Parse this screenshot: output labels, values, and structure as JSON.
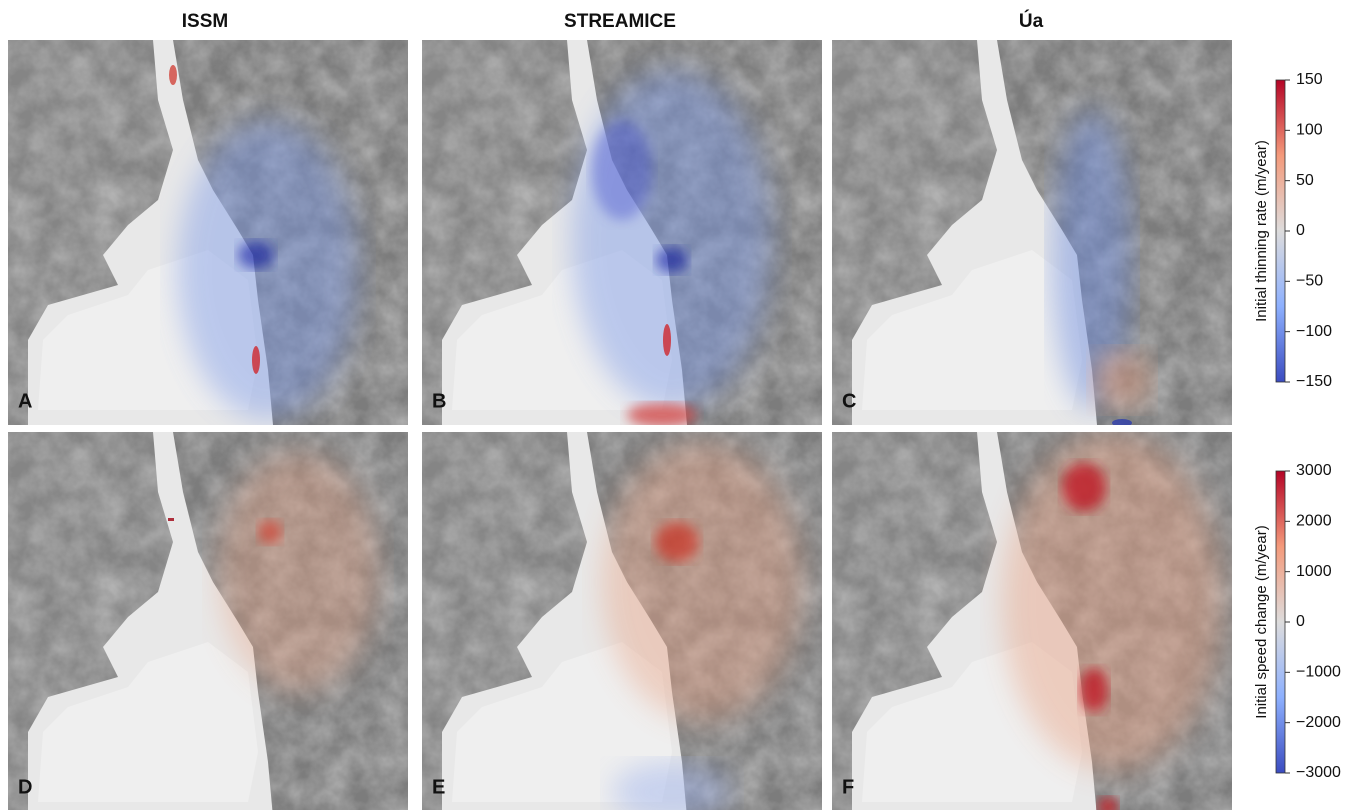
{
  "columns": [
    "ISSM",
    "STREAMICE",
    "Úa"
  ],
  "panels": [
    "A",
    "B",
    "C",
    "D",
    "E",
    "F"
  ],
  "colorbars": [
    {
      "label": "Initial thinning rate (m/year)",
      "lim": [
        -150,
        150
      ],
      "ticks": [
        {
          "value": -150,
          "label": "−150"
        },
        {
          "value": -100,
          "label": "−100"
        },
        {
          "value": -50,
          "label": "−50"
        },
        0,
        50,
        100,
        150
      ]
    },
    {
      "label": "Initial speed change (m/year)",
      "lim": [
        -3000,
        3000
      ],
      "ticks": [
        {
          "value": -3000,
          "label": "−3000"
        },
        {
          "value": -2000,
          "label": "−2000"
        },
        {
          "value": -1000,
          "label": "−1000"
        },
        0,
        1000,
        2000,
        3000
      ]
    }
  ]
}
